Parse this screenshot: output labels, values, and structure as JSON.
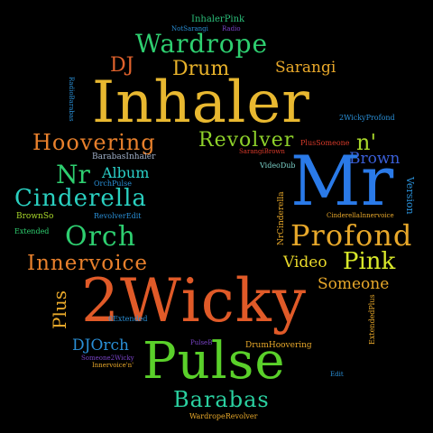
{
  "words": [
    {
      "text": "InhalerPink",
      "color": "#2bbf7a"
    },
    {
      "text": "NotSarangi",
      "color": "#2a8fd6"
    },
    {
      "text": "Radio",
      "color": "#7a44c8"
    },
    {
      "text": "Wardrope",
      "color": "#2ecf70"
    },
    {
      "text": "DJ",
      "color": "#e0622c"
    },
    {
      "text": "Drum",
      "color": "#e8b22a"
    },
    {
      "text": "Sarangi",
      "color": "#e8a82a"
    },
    {
      "text": "RadioBarabas",
      "color": "#2a8fd6"
    },
    {
      "text": "Inhaler",
      "color": "#e8b830"
    },
    {
      "text": "2WickyProfond",
      "color": "#2a8fd6"
    },
    {
      "text": "Hoovering",
      "color": "#e8802c"
    },
    {
      "text": "Revolver",
      "color": "#8ed12a"
    },
    {
      "text": "PlusSomeone",
      "color": "#d83a2a"
    },
    {
      "text": "n'",
      "color": "#a8d62a"
    },
    {
      "text": "BarabasInhaler",
      "color": "#a0b0c8"
    },
    {
      "text": "SarangiBrown",
      "color": "#d83a2a"
    },
    {
      "text": "Brown",
      "color": "#3a5fd8"
    },
    {
      "text": "Nr",
      "color": "#2ecf70"
    },
    {
      "text": "Album",
      "color": "#2ad0c8"
    },
    {
      "text": "OrchPulse",
      "color": "#2a8fd6"
    },
    {
      "text": "VideoDub",
      "color": "#7ad0c8"
    },
    {
      "text": "Mr",
      "color": "#2a7ae8"
    },
    {
      "text": "Cinderella",
      "color": "#2ad0c0"
    },
    {
      "text": "RevolverEdit",
      "color": "#2a8fd6"
    },
    {
      "text": "BrownSo",
      "color": "#a8d62a"
    },
    {
      "text": "NrCinderella",
      "color": "#e8a82a"
    },
    {
      "text": "CinderellaInnervoice",
      "color": "#e8a82a"
    },
    {
      "text": "Version",
      "color": "#2a8fd6"
    },
    {
      "text": "Extended",
      "color": "#2ecf70"
    },
    {
      "text": "Orch",
      "color": "#2ecf70"
    },
    {
      "text": "Profond",
      "color": "#e8a82a"
    },
    {
      "text": "Video",
      "color": "#e8d82a"
    },
    {
      "text": "Pink",
      "color": "#d8e82a"
    },
    {
      "text": "Innervoice",
      "color": "#e8802c"
    },
    {
      "text": "Someone",
      "color": "#e8a82a"
    },
    {
      "text": "Plus",
      "color": "#e8a82a"
    },
    {
      "text": "2Wicky",
      "color": "#e05a28"
    },
    {
      "text": "0Extended",
      "color": "#2a8fd6"
    },
    {
      "text": "ExtendedPlus",
      "color": "#e8a82a"
    },
    {
      "text": "DJOrch",
      "color": "#2a8fd6"
    },
    {
      "text": "Someone2Wicky",
      "color": "#7a44c8"
    },
    {
      "text": "Innervoice'n'",
      "color": "#e8a82a"
    },
    {
      "text": "PulseB",
      "color": "#7a44c8"
    },
    {
      "text": "DrumHoovering",
      "color": "#e8a82a"
    },
    {
      "text": "Pulse",
      "color": "#5ad02a"
    },
    {
      "text": "Edit",
      "color": "#2a8fd6"
    },
    {
      "text": "Barabas",
      "color": "#2ad0a0"
    },
    {
      "text": "WardropeRevolver",
      "color": "#e8a82a"
    }
  ]
}
